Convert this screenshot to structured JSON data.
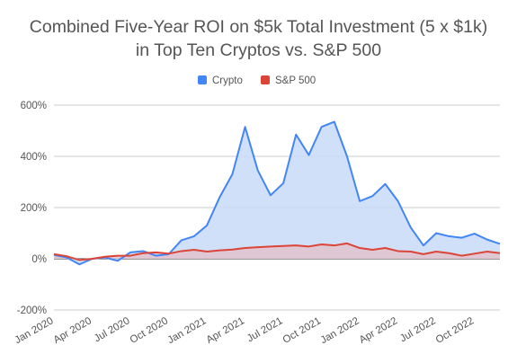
{
  "chart_data": {
    "type": "area",
    "title_lines": [
      "Combined Five-Year ROI on $5k Total Investment (5 x $1k)",
      "in Top Ten Cryptos vs. S&P 500"
    ],
    "xlabel": "",
    "ylabel": "",
    "ylim": [
      -200,
      600
    ],
    "y_ticks": [
      -200,
      0,
      200,
      400,
      600
    ],
    "y_tick_labels": [
      "-200%",
      "0%",
      "200%",
      "400%",
      "600%"
    ],
    "x_tick_labels": [
      "Jan 2020",
      "Apr 2020",
      "Jul 2020",
      "Oct 2020",
      "Jan 2021",
      "Apr 2021",
      "Jul 2021",
      "Oct 2021",
      "Jan 2022",
      "Apr 2022",
      "Jul 2022",
      "Oct 2022"
    ],
    "x_tick_indices": [
      0,
      3,
      6,
      9,
      12,
      15,
      18,
      21,
      24,
      27,
      30,
      33
    ],
    "legend_position": "top",
    "grid": true,
    "x": [
      "Jan 2020",
      "Feb 2020",
      "Mar 2020",
      "Apr 2020",
      "May 2020",
      "Jun 2020",
      "Jul 2020",
      "Aug 2020",
      "Sep 2020",
      "Oct 2020",
      "Nov 2020",
      "Dec 2020",
      "Jan 2021",
      "Feb 2021",
      "Mar 2021",
      "Apr 2021",
      "May 2021",
      "Jun 2021",
      "Jul 2021",
      "Aug 2021",
      "Sep 2021",
      "Oct 2021",
      "Nov 2021",
      "Dec 2021",
      "Jan 2022",
      "Feb 2022",
      "Mar 2022",
      "Apr 2022",
      "May 2022",
      "Jun 2022",
      "Jul 2022",
      "Aug 2022",
      "Sep 2022",
      "Oct 2022",
      "Nov 2022",
      "Dec 2022"
    ],
    "series": [
      {
        "name": "Crypto",
        "color": "#4285f4",
        "fill": "#c9daf8",
        "values": [
          15,
          5,
          -22,
          0,
          5,
          -8,
          25,
          30,
          12,
          18,
          72,
          88,
          130,
          240,
          330,
          515,
          345,
          248,
          295,
          485,
          405,
          515,
          535,
          400,
          225,
          245,
          292,
          225,
          122,
          52,
          100,
          88,
          82,
          98,
          75,
          58
        ]
      },
      {
        "name": "S&P 500",
        "color": "#db4437",
        "fill": "#e2c2cc",
        "values": [
          18,
          10,
          -5,
          0,
          8,
          12,
          12,
          22,
          25,
          20,
          30,
          35,
          28,
          33,
          36,
          42,
          45,
          48,
          50,
          52,
          48,
          56,
          52,
          60,
          42,
          35,
          42,
          30,
          28,
          18,
          28,
          22,
          12,
          20,
          28,
          22
        ]
      }
    ]
  }
}
